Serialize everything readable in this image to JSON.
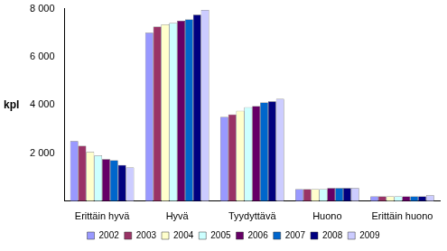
{
  "chart_data": {
    "type": "bar",
    "y_label": "kpl",
    "categories": [
      "Erittäin hyvä",
      "Hyvä",
      "Tyydyttävä",
      "Huono",
      "Erittäin huono"
    ],
    "series": [
      {
        "name": "2002",
        "color": "#9999ff",
        "values": [
          2500,
          7000,
          3500,
          500,
          200
        ]
      },
      {
        "name": "2003",
        "color": "#993366",
        "values": [
          2300,
          7250,
          3600,
          500,
          200
        ]
      },
      {
        "name": "2004",
        "color": "#ffffcc",
        "values": [
          2050,
          7350,
          3750,
          500,
          200
        ]
      },
      {
        "name": "2005",
        "color": "#ccffff",
        "values": [
          1900,
          7400,
          3900,
          500,
          200
        ]
      },
      {
        "name": "2006",
        "color": "#660066",
        "values": [
          1750,
          7500,
          3950,
          550,
          200
        ]
      },
      {
        "name": "2007",
        "color": "#0066cc",
        "values": [
          1700,
          7550,
          4100,
          550,
          200
        ]
      },
      {
        "name": "2008",
        "color": "#000080",
        "values": [
          1500,
          7750,
          4150,
          550,
          200
        ]
      },
      {
        "name": "2009",
        "color": "#ccccff",
        "values": [
          1400,
          7950,
          4250,
          550,
          250
        ]
      }
    ],
    "ylim": [
      0,
      8000
    ],
    "yticks": [
      {
        "value": 2000,
        "label": "2 000"
      },
      {
        "value": 4000,
        "label": "4 000"
      },
      {
        "value": 6000,
        "label": "6 000"
      },
      {
        "value": 8000,
        "label": "8 000"
      }
    ],
    "grid": false,
    "legend": "bottom"
  }
}
